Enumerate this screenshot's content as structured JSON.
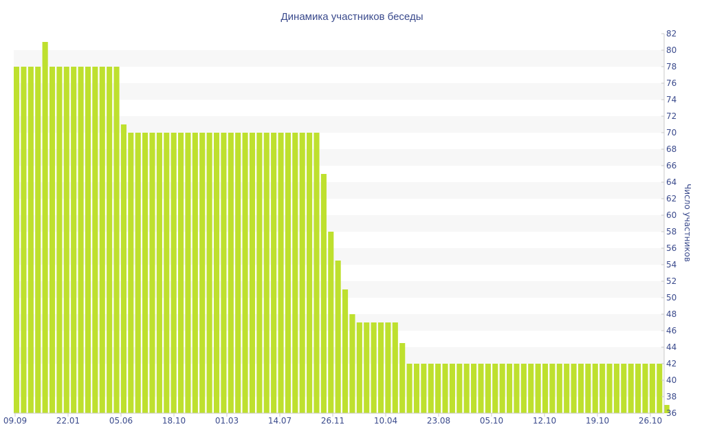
{
  "chart_data": {
    "type": "bar",
    "title": "Динамика участников беседы",
    "xlabel": "",
    "ylabel": "Число участников",
    "ylim": [
      36,
      82
    ],
    "ytick_step": 2,
    "y_axis_side": "right",
    "grid": "alternating horizontal bands",
    "bar_color": "#bee02e",
    "band_color": "#f7f7f7",
    "text_color": "#3a4a8c",
    "x_tick_labels": [
      "09.09",
      "22.01",
      "05.06",
      "18.10",
      "01.03",
      "14.07",
      "26.11",
      "10.04",
      "23.08",
      "05.10",
      "12.10",
      "19.10",
      "26.10"
    ],
    "values": [
      78,
      78,
      78,
      78,
      81,
      78,
      78,
      78,
      78,
      78,
      78,
      78,
      78,
      78,
      78,
      71,
      70,
      70,
      70,
      70,
      70,
      70,
      70,
      70,
      70,
      70,
      70,
      70,
      70,
      70,
      70,
      70,
      70,
      70,
      70,
      70,
      70,
      70,
      70,
      70,
      70,
      70,
      70,
      65,
      58,
      54.5,
      51,
      48,
      47,
      47,
      47,
      47,
      47,
      47,
      44.5,
      42,
      42,
      42,
      42,
      42,
      42,
      42,
      42,
      42,
      42,
      42,
      42,
      42,
      42,
      42,
      42,
      42,
      42,
      42,
      42,
      42,
      42,
      42,
      42,
      42,
      42,
      42,
      42,
      42,
      42,
      42,
      42,
      42,
      42,
      42,
      42,
      37
    ]
  }
}
